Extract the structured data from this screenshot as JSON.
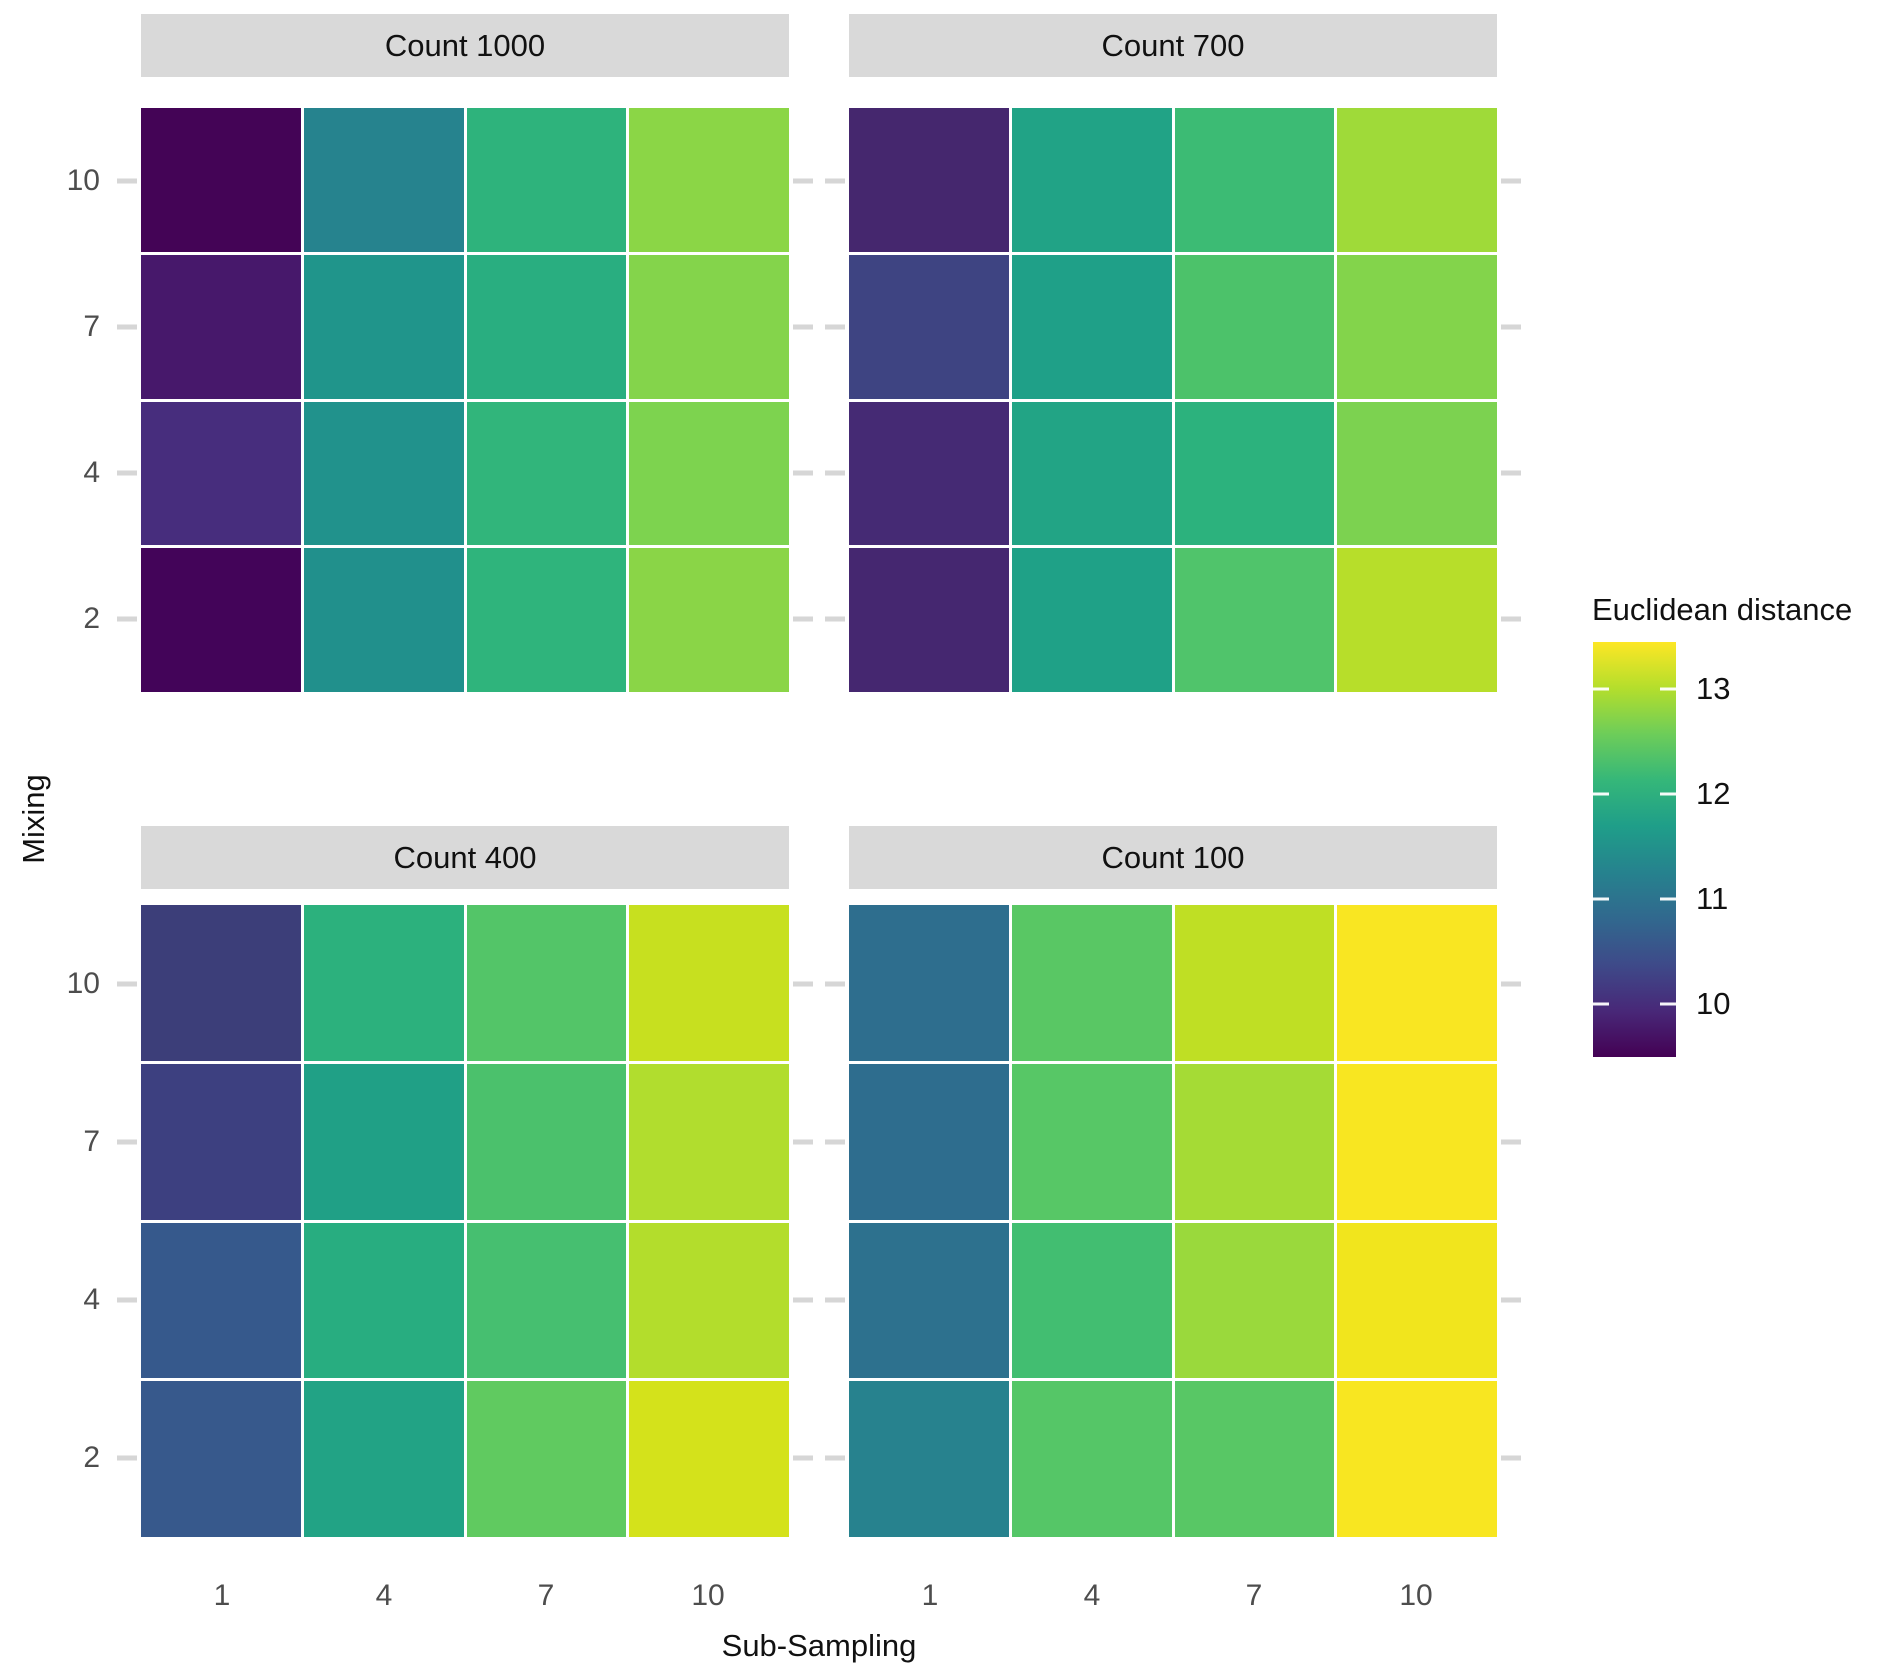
{
  "chart_data": {
    "type": "heatmap",
    "xlabel": "Sub-Sampling",
    "ylabel": "Mixing",
    "x_categories": [
      "1",
      "4",
      "7",
      "10"
    ],
    "y_categories_top_to_bottom": [
      "10",
      "7",
      "4",
      "2"
    ],
    "grid": false,
    "facet_layout": "2x2",
    "legend": {
      "title": "Euclidean distance",
      "position": "right",
      "ticks": [
        13,
        12,
        11,
        10
      ],
      "range_min": 9.5,
      "range_max": 13.45,
      "palette": "viridis",
      "viridis_stops": [
        "#440154",
        "#482878",
        "#3E4A89",
        "#31688E",
        "#26828E",
        "#1F9E89",
        "#35B779",
        "#6DCD59",
        "#B4DE2C",
        "#FDE725"
      ]
    },
    "facets": [
      {
        "title": "Count 1000",
        "rows": [
          {
            "mixing": "10",
            "cells": [
              {
                "sub_sampling": "1",
                "value": 9.5,
                "color": "#440456"
              },
              {
                "sub_sampling": "4",
                "value": 11.3,
                "color": "#26838E"
              },
              {
                "sub_sampling": "7",
                "value": 12.0,
                "color": "#2EB37C"
              },
              {
                "sub_sampling": "10",
                "value": 12.8,
                "color": "#8BD646"
              }
            ]
          },
          {
            "mixing": "7",
            "cells": [
              {
                "sub_sampling": "1",
                "value": 9.8,
                "color": "#47186B"
              },
              {
                "sub_sampling": "4",
                "value": 11.5,
                "color": "#20958B"
              },
              {
                "sub_sampling": "7",
                "value": 11.9,
                "color": "#29AE80"
              },
              {
                "sub_sampling": "10",
                "value": 12.7,
                "color": "#84D44B"
              }
            ]
          },
          {
            "mixing": "4",
            "cells": [
              {
                "sub_sampling": "1",
                "value": 10.0,
                "color": "#472D7D"
              },
              {
                "sub_sampling": "4",
                "value": 11.4,
                "color": "#21928C"
              },
              {
                "sub_sampling": "7",
                "value": 12.0,
                "color": "#31B57B"
              },
              {
                "sub_sampling": "10",
                "value": 12.7,
                "color": "#7DD34F"
              }
            ]
          },
          {
            "mixing": "2",
            "cells": [
              {
                "sub_sampling": "1",
                "value": 9.6,
                "color": "#430459"
              },
              {
                "sub_sampling": "4",
                "value": 11.4,
                "color": "#21908C"
              },
              {
                "sub_sampling": "7",
                "value": 12.0,
                "color": "#2FB47C"
              },
              {
                "sub_sampling": "10",
                "value": 12.8,
                "color": "#8AD547"
              }
            ]
          }
        ]
      },
      {
        "title": "Count 700",
        "rows": [
          {
            "mixing": "10",
            "cells": [
              {
                "sub_sampling": "1",
                "value": 9.9,
                "color": "#45276E"
              },
              {
                "sub_sampling": "4",
                "value": 11.8,
                "color": "#21A386"
              },
              {
                "sub_sampling": "7",
                "value": 12.2,
                "color": "#3CBB74"
              },
              {
                "sub_sampling": "10",
                "value": 12.9,
                "color": "#9FDA39"
              }
            ]
          },
          {
            "mixing": "7",
            "cells": [
              {
                "sub_sampling": "1",
                "value": 10.3,
                "color": "#3E4482"
              },
              {
                "sub_sampling": "4",
                "value": 11.7,
                "color": "#1FA088"
              },
              {
                "sub_sampling": "7",
                "value": 12.3,
                "color": "#4CC26A"
              },
              {
                "sub_sampling": "10",
                "value": 12.7,
                "color": "#83D44B"
              }
            ]
          },
          {
            "mixing": "4",
            "cells": [
              {
                "sub_sampling": "1",
                "value": 10.0,
                "color": "#452A74"
              },
              {
                "sub_sampling": "4",
                "value": 11.8,
                "color": "#22A485"
              },
              {
                "sub_sampling": "7",
                "value": 12.0,
                "color": "#2CB27D"
              },
              {
                "sub_sampling": "10",
                "value": 12.7,
                "color": "#7CD250"
              }
            ]
          },
          {
            "mixing": "2",
            "cells": [
              {
                "sub_sampling": "1",
                "value": 9.9,
                "color": "#452770"
              },
              {
                "sub_sampling": "4",
                "value": 11.7,
                "color": "#1FA187"
              },
              {
                "sub_sampling": "7",
                "value": 12.4,
                "color": "#50C46B"
              },
              {
                "sub_sampling": "10",
                "value": 13.0,
                "color": "#B7DE2A"
              }
            ]
          }
        ]
      },
      {
        "title": "Count 400",
        "rows": [
          {
            "mixing": "10",
            "cells": [
              {
                "sub_sampling": "1",
                "value": 10.3,
                "color": "#3C3E79"
              },
              {
                "sub_sampling": "4",
                "value": 12.0,
                "color": "#2CB17D"
              },
              {
                "sub_sampling": "7",
                "value": 12.4,
                "color": "#53C568"
              },
              {
                "sub_sampling": "10",
                "value": 13.2,
                "color": "#C7E01F"
              }
            ]
          },
          {
            "mixing": "7",
            "cells": [
              {
                "sub_sampling": "1",
                "value": 10.3,
                "color": "#3D4080"
              },
              {
                "sub_sampling": "4",
                "value": 11.7,
                "color": "#20A086"
              },
              {
                "sub_sampling": "7",
                "value": 12.3,
                "color": "#4BC16C"
              },
              {
                "sub_sampling": "10",
                "value": 13.0,
                "color": "#B1DD2E"
              }
            ]
          },
          {
            "mixing": "4",
            "cells": [
              {
                "sub_sampling": "1",
                "value": 10.6,
                "color": "#36598C"
              },
              {
                "sub_sampling": "4",
                "value": 11.9,
                "color": "#28AD80"
              },
              {
                "sub_sampling": "7",
                "value": 12.3,
                "color": "#46BF70"
              },
              {
                "sub_sampling": "10",
                "value": 13.0,
                "color": "#B3DD2C"
              }
            ]
          },
          {
            "mixing": "2",
            "cells": [
              {
                "sub_sampling": "1",
                "value": 10.6,
                "color": "#37598C"
              },
              {
                "sub_sampling": "4",
                "value": 11.8,
                "color": "#22A385"
              },
              {
                "sub_sampling": "7",
                "value": 12.5,
                "color": "#60CA60"
              },
              {
                "sub_sampling": "10",
                "value": 13.2,
                "color": "#D4E21B"
              }
            ]
          }
        ]
      },
      {
        "title": "Count 100",
        "rows": [
          {
            "mixing": "10",
            "cells": [
              {
                "sub_sampling": "1",
                "value": 10.9,
                "color": "#2E6E8E"
              },
              {
                "sub_sampling": "4",
                "value": 12.5,
                "color": "#59C764"
              },
              {
                "sub_sampling": "7",
                "value": 13.1,
                "color": "#BFDF24"
              },
              {
                "sub_sampling": "10",
                "value": 13.4,
                "color": "#F9E622"
              }
            ]
          },
          {
            "mixing": "7",
            "cells": [
              {
                "sub_sampling": "1",
                "value": 10.9,
                "color": "#2E6D8E"
              },
              {
                "sub_sampling": "4",
                "value": 12.4,
                "color": "#57C766"
              },
              {
                "sub_sampling": "7",
                "value": 12.9,
                "color": "#A5DB35"
              },
              {
                "sub_sampling": "10",
                "value": 13.4,
                "color": "#F8E621"
              }
            ]
          },
          {
            "mixing": "4",
            "cells": [
              {
                "sub_sampling": "1",
                "value": 10.9,
                "color": "#2D718E"
              },
              {
                "sub_sampling": "4",
                "value": 12.3,
                "color": "#42BE71"
              },
              {
                "sub_sampling": "7",
                "value": 12.9,
                "color": "#9AD93C"
              },
              {
                "sub_sampling": "10",
                "value": 13.3,
                "color": "#F1E51D"
              }
            ]
          },
          {
            "mixing": "2",
            "cells": [
              {
                "sub_sampling": "1",
                "value": 11.3,
                "color": "#27828E"
              },
              {
                "sub_sampling": "4",
                "value": 12.4,
                "color": "#55C667"
              },
              {
                "sub_sampling": "7",
                "value": 12.5,
                "color": "#58C765"
              },
              {
                "sub_sampling": "10",
                "value": 13.4,
                "color": "#F8E621"
              }
            ]
          }
        ]
      }
    ],
    "colors": {
      "facet_header_bg": "#D9D9D9",
      "tick_label": "#4D4D4D",
      "axis_title": "#111111",
      "tick_mark": "#D6D6D6",
      "background": "#FFFFFF"
    }
  }
}
